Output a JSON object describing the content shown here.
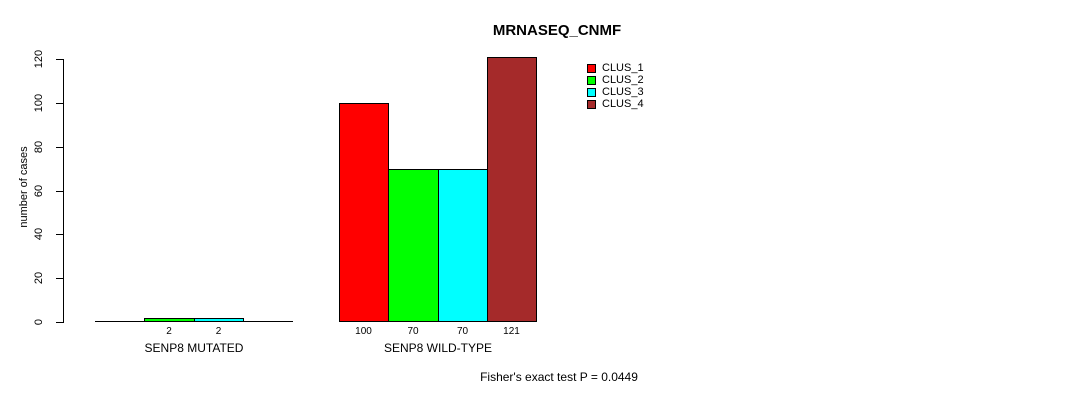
{
  "chart_data": {
    "type": "bar",
    "title": "MRNASEQ_CNMF",
    "ylabel": "number of cases",
    "ylim": [
      0,
      120
    ],
    "yticks": [
      0,
      20,
      40,
      60,
      80,
      100,
      120
    ],
    "grid": false,
    "legend_position": "top-right",
    "series_names": [
      "CLUS_1",
      "CLUS_2",
      "CLUS_3",
      "CLUS_4"
    ],
    "colors": [
      "#FF0000",
      "#00FF00",
      "#00FFFF",
      "#A52A2A"
    ],
    "legend": [
      {
        "name": "CLUS_1",
        "color": "#FF0000"
      },
      {
        "name": "CLUS_2",
        "color": "#00FF00"
      },
      {
        "name": "CLUS_3",
        "color": "#00FFFF"
      },
      {
        "name": "CLUS_4",
        "color": "#A52A2A"
      }
    ],
    "groups": [
      {
        "label": "SENP8 MUTATED",
        "values": [
          0,
          2,
          2,
          0
        ],
        "bar_labels": [
          "",
          "2",
          "2",
          ""
        ]
      },
      {
        "label": "SENP8 WILD-TYPE",
        "values": [
          100,
          70,
          70,
          121
        ],
        "bar_labels": [
          "100",
          "70",
          "70",
          "121"
        ]
      }
    ],
    "footnote": "Fisher's exact test P = 0.0449"
  }
}
